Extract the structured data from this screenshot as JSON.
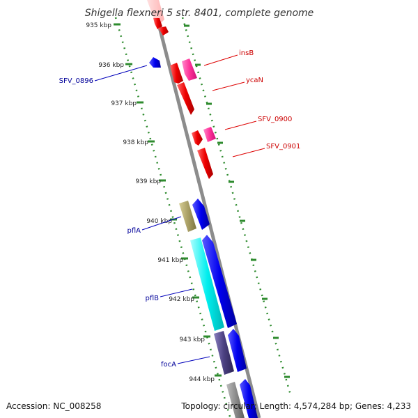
{
  "title": "Shigella flexneri 5 str. 8401, complete genome",
  "accession": "Accession: NC_008258",
  "topology": "Topology: circular; Length: 4,574,284 bp; Genes: 4,233",
  "ruler": [
    "935 kbp",
    "936 kbp",
    "937 kbp",
    "938 kbp",
    "939 kbp",
    "940 kbp",
    "941 kbp",
    "942 kbp",
    "943 kbp",
    "944 kbp"
  ],
  "genes_right": [
    "insB",
    "ycaN",
    "SFV_0900",
    "SFV_0901"
  ],
  "genes_left": [
    "SFV_0896",
    "pflA",
    "pflB",
    "focA"
  ],
  "colors": {
    "backbone": "#8c8c8c",
    "ruler_tick": "#2e8b2e",
    "forward_blue": "#0000ee",
    "reverse_red": "#ee0000",
    "pink": "#ff3399",
    "cyan": "#00eeee",
    "olive": "#aaa066",
    "dark_purple": "#4a3f80",
    "label_red": "#cc0000",
    "label_blue": "#000099"
  }
}
